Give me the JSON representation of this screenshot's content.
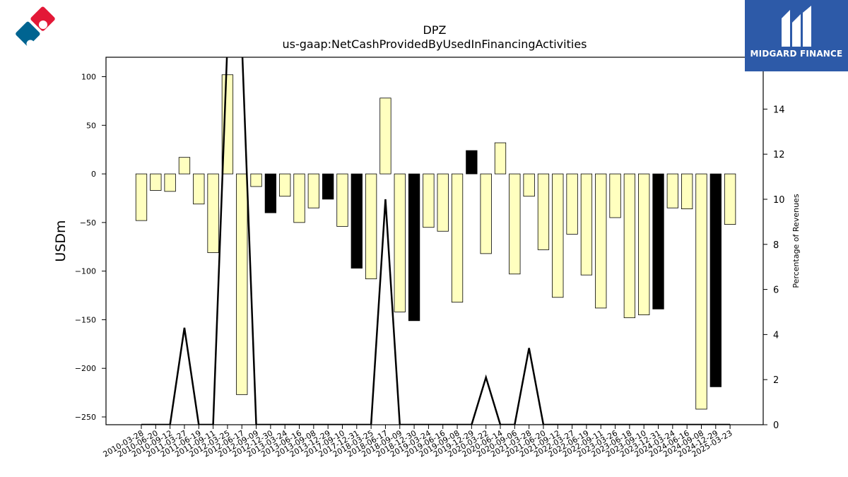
{
  "chart_data": {
    "type": "bar",
    "title": "DPZ",
    "subtitle": "us-gaap:NetCashProvidedByUsedInFinancingActivities",
    "ylabel": "USDm",
    "y2label": "Percentage of Revenues",
    "ylim": [
      -258,
      120
    ],
    "y2lim": [
      0,
      16.3
    ],
    "yticks": [
      100,
      50,
      0,
      -50,
      -100,
      -150,
      -200,
      -250
    ],
    "y2ticks": [
      0,
      2,
      4,
      6,
      8,
      10,
      12,
      14
    ],
    "xtick_labels": [
      "2010-03-28",
      "2010-06-20",
      "2010-09-12",
      "2011-03-27",
      "2011-06-19",
      "2011-09-11",
      "2012-03-25",
      "2012-06-17",
      "2012-09-09",
      "2012-12-30",
      "2013-03-24",
      "2013-06-16",
      "2013-09-08",
      "2013-12-29",
      "2017-09-10",
      "2017-12-31",
      "2018-03-25",
      "2018-06-17",
      "2018-09-09",
      "2018-12-30",
      "2019-03-24",
      "2019-06-16",
      "2019-09-08",
      "2019-12-29",
      "2020-03-22",
      "2020-06-14",
      "2020-09-06",
      "2021-03-28",
      "2021-06-20",
      "2021-09-12",
      "2022-03-27",
      "2022-06-19",
      "2022-09-11",
      "2023-03-26",
      "2023-06-18",
      "2023-09-10",
      "2023-12-31",
      "2024-03-24",
      "2024-06-16",
      "2024-09-08",
      "2024-12-29",
      "2025-03-23"
    ],
    "values": [
      -48,
      -17,
      -18,
      17,
      -31,
      -81,
      102,
      -227,
      -13,
      -40,
      -23,
      -50,
      -35,
      -26,
      -54,
      -97,
      -108,
      78,
      -142,
      -151,
      -55,
      -59,
      -132,
      24,
      -82,
      32,
      -103,
      -23,
      -78,
      -127,
      -62,
      -104,
      -138,
      -45,
      -148,
      -145,
      -139,
      -35,
      -36,
      -242,
      -219,
      -52
    ],
    "highlight": [
      false,
      false,
      false,
      false,
      false,
      false,
      false,
      false,
      false,
      true,
      false,
      false,
      false,
      true,
      false,
      true,
      false,
      false,
      false,
      true,
      false,
      false,
      false,
      true,
      false,
      false,
      false,
      false,
      false,
      false,
      false,
      false,
      false,
      false,
      false,
      false,
      true,
      false,
      false,
      false,
      true,
      false
    ],
    "pct_of_revenues": [
      0,
      0,
      0,
      4.3,
      0,
      0,
      17,
      17,
      0,
      0,
      0,
      0,
      0,
      0,
      0,
      0,
      0,
      10,
      0,
      0,
      0,
      0,
      0,
      0,
      2.1,
      0,
      0,
      3.4,
      0,
      0,
      0,
      0,
      0,
      0,
      0,
      0,
      0,
      0,
      0,
      0,
      0,
      0
    ],
    "colors": {
      "bar": "#ffffbf",
      "bar_highlight": "#000000",
      "line": "#000000"
    }
  },
  "logos": {
    "right_brand": "MIDGARD FINANCE"
  }
}
